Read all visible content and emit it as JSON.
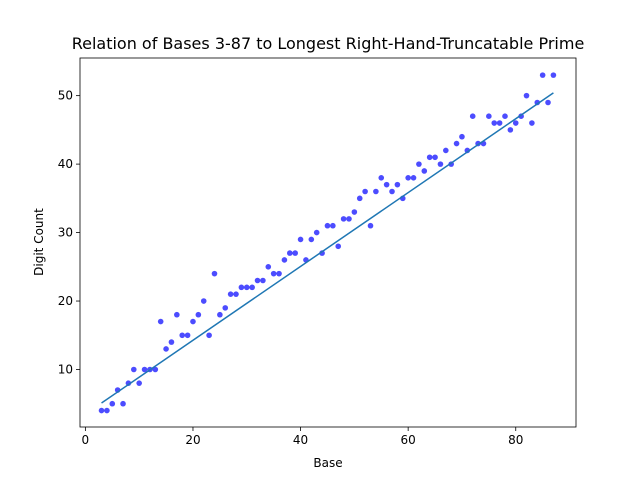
{
  "chart_data": {
    "type": "scatter",
    "title": "Relation of Bases 3-87 to Longest Right-Hand-Truncatable Prime",
    "xlabel": "Base",
    "ylabel": "Digit Count",
    "xlim": [
      -1,
      91.2
    ],
    "ylim": [
      1.6,
      55.5
    ],
    "xticks": [
      0,
      20,
      40,
      60,
      80
    ],
    "yticks": [
      10,
      20,
      30,
      40,
      50
    ],
    "grid": false,
    "legend": "none",
    "colors": {
      "points": "#0000ff",
      "fit_line": "#1f77b4"
    },
    "series": [
      {
        "kind": "scatter",
        "x": [
          3,
          4,
          5,
          6,
          7,
          8,
          9,
          10,
          11,
          12,
          13,
          14,
          15,
          16,
          17,
          18,
          19,
          20,
          21,
          22,
          23,
          24,
          25,
          26,
          27,
          28,
          29,
          30,
          31,
          32,
          33,
          34,
          35,
          36,
          37,
          38,
          39,
          40,
          41,
          42,
          43,
          44,
          45,
          46,
          47,
          48,
          49,
          50,
          51,
          52,
          53,
          54,
          55,
          56,
          57,
          58,
          59,
          60,
          61,
          62,
          63,
          64,
          65,
          66,
          67,
          68,
          69,
          70,
          71,
          72,
          73,
          74,
          75,
          76,
          77,
          78,
          79,
          80,
          81,
          82,
          83,
          84,
          85,
          86,
          87
        ],
        "y": [
          4,
          4,
          5,
          7,
          5,
          8,
          10,
          8,
          10,
          10,
          10,
          17,
          13,
          14,
          18,
          15,
          15,
          17,
          18,
          20,
          15,
          24,
          18,
          19,
          21,
          21,
          22,
          22,
          22,
          23,
          23,
          25,
          24,
          24,
          26,
          27,
          27,
          29,
          26,
          29,
          30,
          27,
          31,
          31,
          28,
          32,
          32,
          33,
          35,
          36,
          31,
          36,
          38,
          37,
          36,
          37,
          35,
          38,
          38,
          40,
          39,
          41,
          41,
          40,
          42,
          40,
          43,
          44,
          42,
          47,
          43,
          43,
          47,
          46,
          46,
          47,
          45,
          46,
          47,
          50,
          46,
          49,
          53,
          49,
          53
        ]
      },
      {
        "kind": "line",
        "x": [
          3,
          87
        ],
        "y": [
          5.1,
          50.4
        ]
      }
    ]
  }
}
